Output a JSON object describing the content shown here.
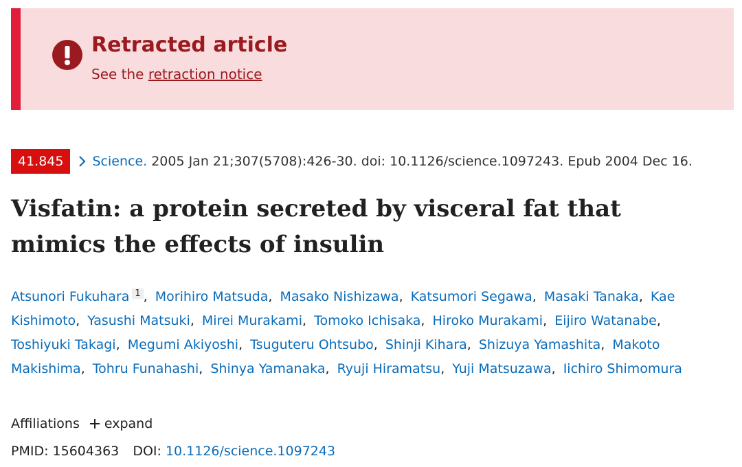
{
  "banner": {
    "title": "Retracted article",
    "prefix": "See the",
    "link": "retraction notice"
  },
  "citation": {
    "badge": "41.845",
    "journal": "Science.",
    "details": "2005 Jan 21;307(5708):426-30. doi: 10.1126/science.1097243. Epub 2004 Dec 16."
  },
  "title": "Visfatin: a protein secreted by visceral fat that mimics the effects of insulin",
  "authors": [
    {
      "name": "Atsunori Fukuhara",
      "affiliation": "1",
      "separator": ","
    },
    {
      "name": "Morihiro Matsuda",
      "separator": ","
    },
    {
      "name": "Masako Nishizawa",
      "separator": ","
    },
    {
      "name": "Katsumori Segawa",
      "separator": ","
    },
    {
      "name": "Masaki Tanaka",
      "separator": ","
    },
    {
      "name": "Kae Kishimoto",
      "separator": ","
    },
    {
      "name": "Yasushi Matsuki",
      "separator": ","
    },
    {
      "name": "Mirei Murakami",
      "separator": ","
    },
    {
      "name": "Tomoko Ichisaka",
      "separator": ","
    },
    {
      "name": "Hiroko Murakami",
      "separator": ","
    },
    {
      "name": "Eijiro Watanabe",
      "separator": ","
    },
    {
      "name": "Toshiyuki Takagi",
      "separator": ","
    },
    {
      "name": "Megumi Akiyoshi",
      "separator": ","
    },
    {
      "name": "Tsuguteru Ohtsubo",
      "separator": ","
    },
    {
      "name": "Shinji Kihara",
      "separator": ","
    },
    {
      "name": "Shizuya Yamashita",
      "separator": ","
    },
    {
      "name": "Makoto Makishima",
      "separator": ","
    },
    {
      "name": "Tohru Funahashi",
      "separator": ","
    },
    {
      "name": "Shinya Yamanaka",
      "separator": ","
    },
    {
      "name": "Ryuji Hiramatsu",
      "separator": ","
    },
    {
      "name": "Yuji Matsuzawa",
      "separator": ","
    },
    {
      "name": "Iichiro Shimomura"
    }
  ],
  "affiliations": {
    "label": "Affiliations",
    "toggle": "expand"
  },
  "identifiers": {
    "pmid_label": "PMID:",
    "pmid": "15604363",
    "doi_label": "DOI:",
    "doi": "10.1126/science.1097243"
  }
}
